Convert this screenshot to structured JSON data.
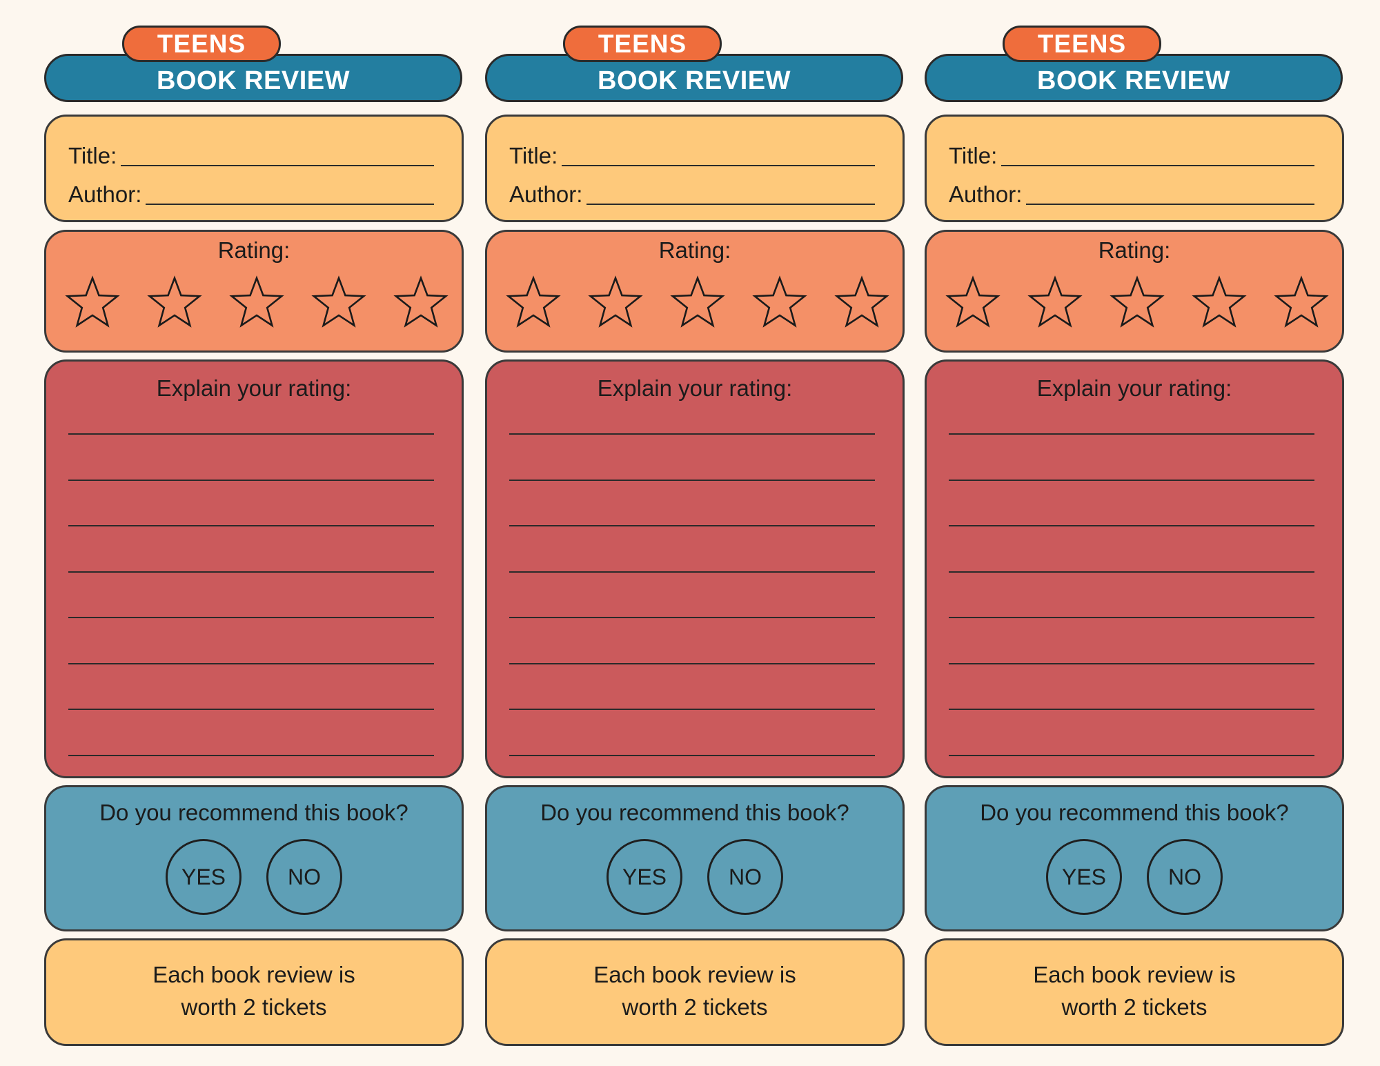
{
  "cards": [
    {
      "tab": "TEENS",
      "banner": "BOOK REVIEW",
      "title_label": "Title:",
      "author_label": "Author:",
      "rating_label": "Rating:",
      "explain_label": "Explain your rating:",
      "recommend_question": "Do you recommend this book?",
      "yes_label": "YES",
      "no_label": "NO",
      "note_line1": "Each book review is",
      "note_line2": "worth 2 tickets"
    },
    {
      "tab": "TEENS",
      "banner": "BOOK REVIEW",
      "title_label": "Title:",
      "author_label": "Author:",
      "rating_label": "Rating:",
      "explain_label": "Explain your rating:",
      "recommend_question": "Do you recommend this book?",
      "yes_label": "YES",
      "no_label": "NO",
      "note_line1": "Each book review is",
      "note_line2": "worth 2 tickets"
    },
    {
      "tab": "TEENS",
      "banner": "BOOK REVIEW",
      "title_label": "Title:",
      "author_label": "Author:",
      "rating_label": "Rating:",
      "explain_label": "Explain your rating:",
      "recommend_question": "Do you recommend this book?",
      "yes_label": "YES",
      "no_label": "NO",
      "note_line1": "Each book review is",
      "note_line2": "worth 2 tickets"
    }
  ],
  "star_count": 5,
  "colors": {
    "background": "#fdf7ef",
    "tab": "#ef6d3c",
    "banner": "#237ea0",
    "info_box": "#fec97b",
    "rating_box": "#f49067",
    "explain_box": "#cb5a5c",
    "recommend_box": "#5e9fb6"
  }
}
